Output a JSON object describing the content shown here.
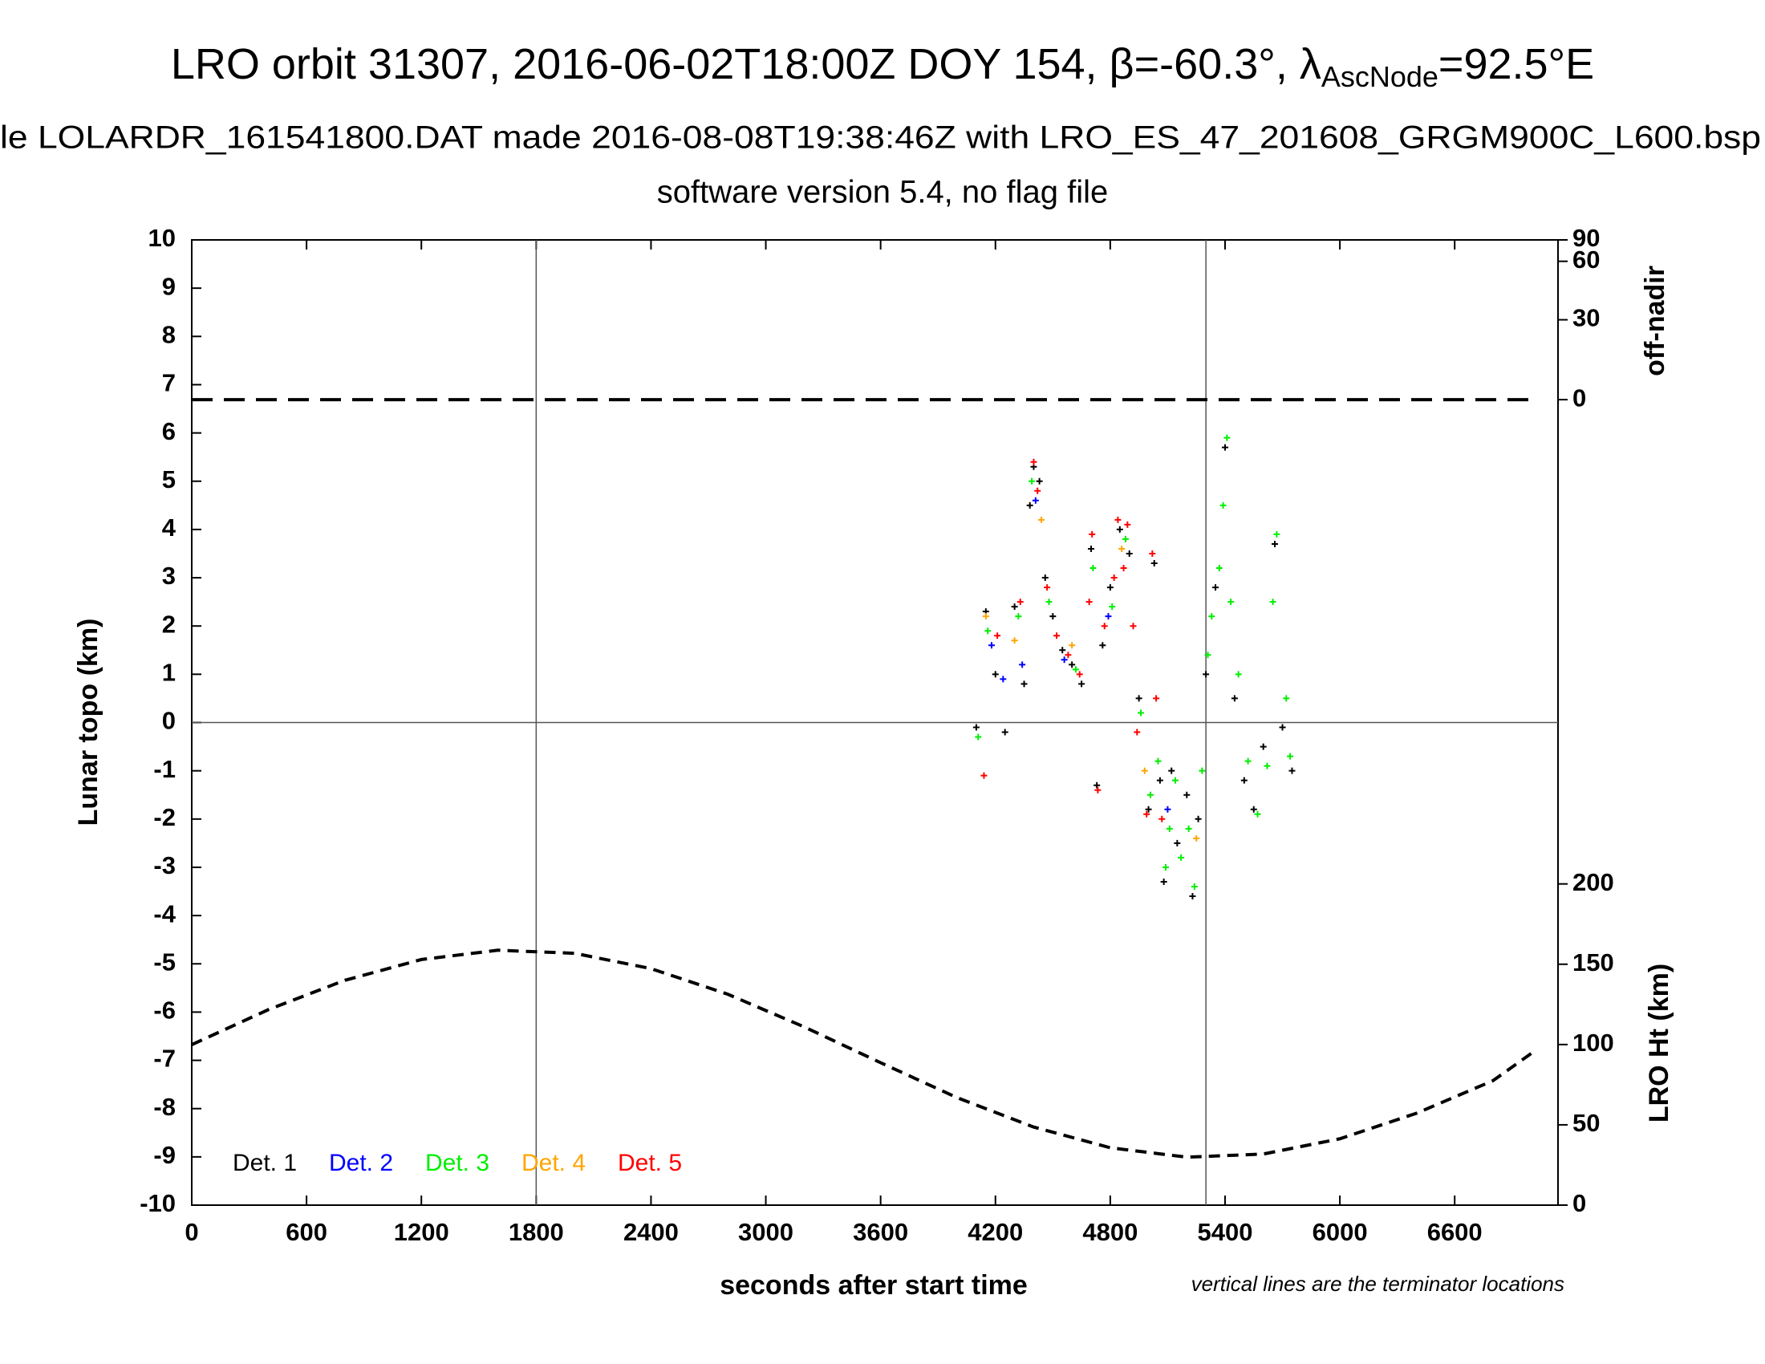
{
  "chart_data": {
    "type": "scatter",
    "title": [
      "LRO orbit 31307, 2016-06-02T18:00Z DOY 154, β=-60.3°, λ",
      "AscNode",
      "=92.5°E"
    ],
    "subtitle": "le LOLARDR_161541800.DAT made 2016-08-08T19:38:46Z with LRO_ES_47_201608_GRGM900C_L600.bsp",
    "subtitle2": "software version 5.4, no flag file",
    "xlabel": "seconds after start time",
    "ylabel": "Lunar topo (km)",
    "y2label": "LRO Ht (km)",
    "y3label": "off-nadir",
    "note": "vertical lines are the terminator locations",
    "xlim": [
      0,
      7140
    ],
    "xticks": [
      0,
      600,
      1200,
      1800,
      2400,
      3000,
      3600,
      4200,
      4800,
      5400,
      6000,
      6600
    ],
    "ylim": [
      -10,
      10
    ],
    "yticks": [
      -10,
      -9,
      -8,
      -7,
      -6,
      -5,
      -4,
      -3,
      -2,
      -1,
      0,
      1,
      2,
      3,
      4,
      5,
      6,
      7,
      8,
      9,
      10
    ],
    "y2lim": [
      0,
      601
    ],
    "y2ticks": [
      0,
      50,
      100,
      150,
      200
    ],
    "y3lim": [
      0,
      90
    ],
    "y3ticks": [
      0,
      30,
      60,
      90
    ],
    "y3scale": "sine",
    "terminators": [
      1800,
      5300
    ],
    "zero_line": 0,
    "series": [
      {
        "name": "Det. 1",
        "color": "#000000",
        "x": [
          4100,
          4150,
          4200,
          4250,
          4300,
          4350,
          4380,
          4400,
          4430,
          4460,
          4500,
          4550,
          4600,
          4650,
          4700,
          4730,
          4760,
          4800,
          4850,
          4900,
          4950,
          5000,
          5030,
          5060,
          5080,
          5120,
          5150,
          5200,
          5230,
          5260,
          5300,
          5350,
          5400,
          5450,
          5500,
          5550,
          5600,
          5660,
          5700,
          5750
        ],
        "values": [
          -0.1,
          2.3,
          1,
          -0.2,
          2.4,
          0.8,
          4.5,
          5.3,
          5.0,
          3,
          2.2,
          1.5,
          1.2,
          0.8,
          3.6,
          -1.3,
          1.6,
          2.8,
          4.0,
          3.5,
          0.5,
          -1.8,
          3.3,
          -1.2,
          -3.3,
          -1,
          -2.5,
          -1.5,
          -3.6,
          -2,
          1,
          2.8,
          5.7,
          0.5,
          -1.2,
          -1.8,
          -0.5,
          3.7,
          -0.1,
          -1.0
        ]
      },
      {
        "name": "Det. 2",
        "color": "#0000ff",
        "x": [
          4180,
          4240,
          4340,
          4410,
          4560,
          4790,
          5100
        ],
        "values": [
          1.6,
          0.9,
          1.2,
          4.6,
          1.3,
          2.2,
          -1.8
        ]
      },
      {
        "name": "Det. 3",
        "color": "#00ee00",
        "x": [
          4110,
          4160,
          4320,
          4390,
          4480,
          4620,
          4710,
          4810,
          4880,
          4960,
          5010,
          5050,
          5090,
          5110,
          5140,
          5170,
          5210,
          5240,
          5280,
          5310,
          5330,
          5370,
          5390,
          5410,
          5430,
          5470,
          5520,
          5570,
          5620,
          5650,
          5670,
          5720,
          5740
        ],
        "values": [
          -0.3,
          1.9,
          2.2,
          5.0,
          2.5,
          1.1,
          3.2,
          2.4,
          3.8,
          0.2,
          -1.5,
          -0.8,
          -3.0,
          -2.2,
          -1.2,
          -2.8,
          -2.2,
          -3.4,
          -1.0,
          1.4,
          2.2,
          3.2,
          4.5,
          5.9,
          2.5,
          1.0,
          -0.8,
          -1.9,
          -0.9,
          2.5,
          3.9,
          0.5,
          -0.7
        ]
      },
      {
        "name": "Det. 4",
        "color": "#ffa500",
        "x": [
          4150,
          4300,
          4440,
          4600,
          4860,
          4980,
          5250
        ],
        "values": [
          2.2,
          1.7,
          4.2,
          1.6,
          3.6,
          -1.0,
          -2.4
        ]
      },
      {
        "name": "Det. 5",
        "color": "#ff0000",
        "x": [
          4140,
          4210,
          4330,
          4400,
          4420,
          4470,
          4520,
          4580,
          4640,
          4690,
          4705,
          4735,
          4770,
          4820,
          4840,
          4870,
          4890,
          4920,
          4940,
          4990,
          5020,
          5040,
          5070
        ],
        "values": [
          -1.1,
          1.8,
          2.5,
          5.4,
          4.8,
          2.8,
          1.8,
          1.4,
          1.0,
          2.5,
          3.9,
          -1.4,
          2.0,
          3.0,
          4.2,
          3.2,
          4.1,
          2.0,
          -0.2,
          -1.9,
          3.5,
          0.5,
          -2.0
        ]
      }
    ],
    "height_curve": {
      "axis": "y2",
      "color": "#000000",
      "x": [
        0,
        400,
        800,
        1200,
        1600,
        2000,
        2400,
        2800,
        3200,
        3600,
        4000,
        4400,
        4800,
        5200,
        5600,
        6000,
        6400,
        6800,
        7030
      ],
      "values": [
        99.9,
        121.7,
        140.0,
        152.9,
        158.7,
        156.8,
        147.3,
        131.4,
        111.0,
        88.7,
        66.9,
        48.6,
        35.7,
        29.9,
        31.8,
        41.3,
        57.2,
        77.5,
        97
      ]
    },
    "nadir_line": {
      "axis": "y3",
      "color": "#000000",
      "x": [
        0,
        7030
      ],
      "values": [
        0,
        0
      ]
    }
  }
}
